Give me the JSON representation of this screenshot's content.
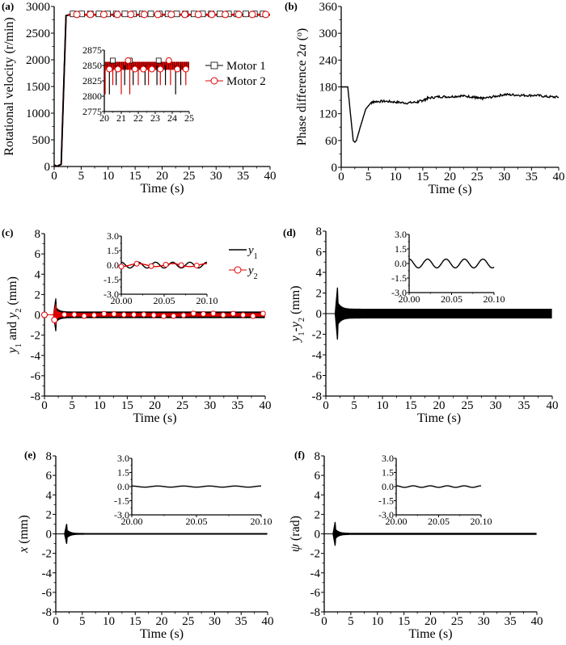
{
  "chart_data": [
    {
      "panel": "(a)",
      "type": "line",
      "xlabel": "Time (s)",
      "ylabel": "Rotational velocity (r/min)",
      "xlim": [
        0,
        40
      ],
      "ylim": [
        0,
        3000
      ],
      "xticks": [
        "0",
        "5",
        "10",
        "15",
        "20",
        "25",
        "30",
        "35",
        "40"
      ],
      "yticks": [
        "0",
        "500",
        "1000",
        "1500",
        "2000",
        "2500",
        "3000"
      ],
      "series": [
        {
          "name": "Motor 1",
          "color": "#000000",
          "marker": "square",
          "x": [
            0,
            0.5,
            1.3,
            2.2,
            3,
            40
          ],
          "y": [
            30,
            5,
            40,
            2830,
            2845,
            2845
          ]
        },
        {
          "name": "Motor 2",
          "color": "#e00000",
          "marker": "circle",
          "x": [
            0,
            0.5,
            1.3,
            2.2,
            3,
            40
          ],
          "y": [
            30,
            5,
            40,
            2830,
            2845,
            2845
          ]
        }
      ],
      "inset": {
        "xlim": [
          20,
          25
        ],
        "ylim": [
          2775,
          2875
        ],
        "xticks": [
          "20",
          "21",
          "22",
          "23",
          "24",
          "25"
        ],
        "yticks": [
          "2775",
          "2800",
          "2825",
          "2850",
          "2875"
        ],
        "band": [
          2843,
          2856
        ],
        "dips_motor1": [
          [
            20.3,
            2803
          ],
          [
            20.7,
            2818
          ],
          [
            21.2,
            2818
          ],
          [
            21.7,
            2818
          ],
          [
            22.4,
            2818
          ],
          [
            23.1,
            2818
          ],
          [
            23.6,
            2818
          ],
          [
            24.2,
            2803
          ],
          [
            24.5,
            2818
          ]
        ],
        "dips_motor2": [
          [
            20.05,
            2803
          ],
          [
            20.5,
            2818
          ],
          [
            21.0,
            2803
          ],
          [
            21.5,
            2803
          ],
          [
            22.0,
            2818
          ],
          [
            22.6,
            2818
          ],
          [
            23.3,
            2818
          ],
          [
            23.9,
            2818
          ],
          [
            24.8,
            2818
          ]
        ]
      }
    },
    {
      "panel": "(b)",
      "type": "line",
      "xlabel": "Time (s)",
      "ylabel": "Phase difference 2a (°)",
      "ylabel_parts": [
        "Phase difference 2",
        "a",
        " (",
        "o",
        ")"
      ],
      "xlim": [
        0,
        40
      ],
      "ylim": [
        0,
        360
      ],
      "xticks": [
        "0",
        "5",
        "10",
        "15",
        "20",
        "25",
        "30",
        "35",
        "40"
      ],
      "yticks": [
        "0",
        "60",
        "120",
        "180",
        "240",
        "300",
        "360"
      ],
      "series": [
        {
          "name": "2a",
          "color": "#000000",
          "x": [
            0,
            1.2,
            2.2,
            2.5,
            2.8,
            3.5,
            4.5,
            5.5,
            6,
            8,
            10,
            12,
            14,
            15,
            16,
            18,
            20,
            22,
            24,
            25,
            26,
            28,
            30,
            32,
            34,
            36,
            38,
            40
          ],
          "y": [
            180,
            180,
            60,
            56,
            60,
            90,
            130,
            145,
            147,
            148,
            146,
            144,
            146,
            150,
            155,
            158,
            158,
            160,
            158,
            155,
            154,
            158,
            163,
            162,
            161,
            161,
            158,
            157
          ]
        }
      ]
    },
    {
      "panel": "(c)",
      "type": "line",
      "xlabel": "Time (s)",
      "ylabel": "y1 and y2 (mm)",
      "ylabel_parts": [
        "y",
        "1",
        " and ",
        "y",
        "2",
        " (mm)"
      ],
      "xlim": [
        0,
        40
      ],
      "ylim": [
        -8,
        8
      ],
      "xticks": [
        "0",
        "5",
        "10",
        "15",
        "20",
        "25",
        "30",
        "35",
        "40"
      ],
      "yticks": [
        "-8",
        "-6",
        "-4",
        "-2",
        "0",
        "2",
        "4",
        "6",
        "8"
      ],
      "legend": [
        {
          "main": "y",
          "sub": "1"
        },
        {
          "main": "y",
          "sub": "2"
        }
      ],
      "series": [
        {
          "name": "y1",
          "color": "#000000",
          "spike": 1.6,
          "steady_amplitude": 0.3
        },
        {
          "name": "y2",
          "color": "#e00000",
          "marker": "circle",
          "spike": 1.0,
          "steady_amplitude": 0.15
        }
      ],
      "inset": {
        "xlim": [
          20.0,
          20.1
        ],
        "ylim": [
          -3.0,
          3.0
        ],
        "xticks": [
          "20.00",
          "20.05",
          "20.10"
        ],
        "yticks": [
          "-3.0",
          "-1.5",
          "0.0",
          "1.5",
          "3.0"
        ],
        "y1_amplitude": 0.3,
        "y2_amplitude": 0.15,
        "cycles": 5
      }
    },
    {
      "panel": "(d)",
      "type": "line",
      "xlabel": "Time (s)",
      "ylabel": "y1-y2 (mm)",
      "ylabel_parts": [
        "y",
        "1",
        "-",
        "y",
        "2",
        " (mm)"
      ],
      "xlim": [
        0,
        40
      ],
      "ylim": [
        -8,
        8
      ],
      "xticks": [
        "0",
        "5",
        "10",
        "15",
        "20",
        "25",
        "30",
        "35",
        "40"
      ],
      "yticks": [
        "-8",
        "-6",
        "-4",
        "-2",
        "0",
        "2",
        "4",
        "6",
        "8"
      ],
      "series": [
        {
          "name": "y1-y2",
          "color": "#000000",
          "spike": 2.5,
          "steady_amplitude": 0.45
        }
      ],
      "inset": {
        "xlim": [
          20.0,
          20.1
        ],
        "ylim": [
          -3.0,
          3.0
        ],
        "xticks": [
          "20.00",
          "20.05",
          "20.10"
        ],
        "yticks": [
          "-3.0",
          "-1.5",
          "0.0",
          "1.5",
          "3.0"
        ],
        "amplitude": 0.45,
        "cycles": 4.6
      }
    },
    {
      "panel": "(e)",
      "type": "line",
      "xlabel": "Time (s)",
      "ylabel": "x (mm)",
      "ylabel_parts": [
        "x",
        " (mm)"
      ],
      "xlim": [
        0,
        40
      ],
      "ylim": [
        -8,
        8
      ],
      "xticks": [
        "0",
        "5",
        "10",
        "15",
        "20",
        "25",
        "30",
        "35",
        "40"
      ],
      "yticks": [
        "-8",
        "-6",
        "-4",
        "-2",
        "0",
        "2",
        "4",
        "6",
        "8"
      ],
      "series": [
        {
          "name": "x",
          "color": "#000000",
          "spike": 1.0,
          "steady_amplitude": 0.06
        }
      ],
      "inset": {
        "xlim": [
          20.0,
          20.1
        ],
        "ylim": [
          -3.0,
          3.0
        ],
        "xticks": [
          "20.00",
          "20.05",
          "20.10"
        ],
        "yticks": [
          "-3.0",
          "-1.5",
          "0.0",
          "1.5",
          "3.0"
        ],
        "amplitude": 0.06,
        "cycles": 5
      }
    },
    {
      "panel": "(f)",
      "type": "line",
      "xlabel": "Time (s)",
      "ylabel": "ψ (rad)",
      "ylabel_parts": [
        "ψ",
        " (rad)"
      ],
      "xlim": [
        0,
        40
      ],
      "ylim": [
        -8,
        8
      ],
      "xticks": [
        "0",
        "5",
        "10",
        "15",
        "20",
        "25",
        "30",
        "35",
        "40"
      ],
      "yticks": [
        "-8",
        "-6",
        "-4",
        "-2",
        "0",
        "2",
        "4",
        "6",
        "8"
      ],
      "series": [
        {
          "name": "ψ",
          "color": "#000000",
          "spike": 1.2,
          "steady_amplitude": 0.08
        }
      ],
      "inset": {
        "xlim": [
          20.0,
          20.1
        ],
        "ylim": [
          -3.0,
          3.0
        ],
        "xticks": [
          "20.00",
          "20.05",
          "20.10"
        ],
        "yticks": [
          "-3.0",
          "-1.5",
          "0.0",
          "1.5",
          "3.0"
        ],
        "amplitude": 0.08,
        "cycles": 5
      }
    }
  ]
}
